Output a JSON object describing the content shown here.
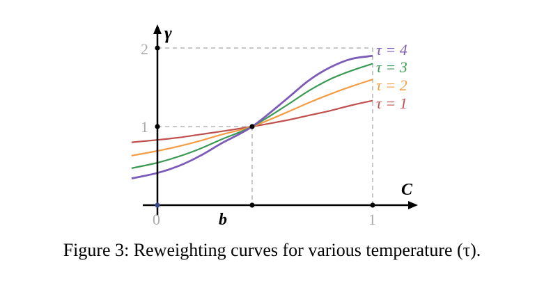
{
  "caption": "Figure 3: Reweighting curves for various temperature (τ).",
  "axes": {
    "x_label": "C",
    "y_label": "γ",
    "x_ticks": [
      "0",
      "b",
      "1"
    ],
    "y_ticks": [
      "1",
      "2"
    ]
  },
  "chart_data": {
    "type": "line",
    "xlabel": "C",
    "ylabel": "γ",
    "xlim": [
      -0.1,
      1.2
    ],
    "ylim": [
      0,
      2.2
    ],
    "x_ticks": [
      0,
      0.44,
      1
    ],
    "x_tick_labels": [
      "0",
      "b",
      "1"
    ],
    "y_ticks": [
      1,
      2
    ],
    "y_tick_labels": [
      "1",
      "2"
    ],
    "reference_point": {
      "x": 0.44,
      "y": 1
    },
    "grid": false,
    "legend": "right",
    "series": [
      {
        "name": "τ = 1",
        "color": "#c0504d",
        "x": [
          -0.12,
          0,
          0.1,
          0.2,
          0.3,
          0.44,
          0.6,
          0.7,
          0.8,
          0.9,
          1.0
        ],
        "y": [
          0.8,
          0.83,
          0.86,
          0.9,
          0.94,
          1.0,
          1.08,
          1.14,
          1.2,
          1.27,
          1.33
        ]
      },
      {
        "name": "τ = 2",
        "color": "#f39c43",
        "x": [
          -0.12,
          0,
          0.1,
          0.2,
          0.3,
          0.44,
          0.6,
          0.7,
          0.8,
          0.9,
          1.0
        ],
        "y": [
          0.63,
          0.69,
          0.75,
          0.82,
          0.9,
          1.0,
          1.18,
          1.3,
          1.41,
          1.51,
          1.6
        ]
      },
      {
        "name": "τ = 3",
        "color": "#3a9a54",
        "x": [
          -0.12,
          0,
          0.1,
          0.2,
          0.3,
          0.44,
          0.6,
          0.7,
          0.8,
          0.9,
          1.0
        ],
        "y": [
          0.47,
          0.54,
          0.62,
          0.72,
          0.84,
          1.0,
          1.27,
          1.45,
          1.6,
          1.71,
          1.8
        ]
      },
      {
        "name": "τ = 4",
        "color": "#7c5bb8",
        "x": [
          -0.12,
          0,
          0.1,
          0.2,
          0.3,
          0.44,
          0.6,
          0.7,
          0.8,
          0.9,
          1.0
        ],
        "y": [
          0.34,
          0.41,
          0.5,
          0.63,
          0.79,
          1.0,
          1.35,
          1.58,
          1.75,
          1.86,
          1.9
        ]
      }
    ]
  },
  "labels": {
    "tau4": "τ = 4",
    "tau3": "τ = 3",
    "tau2": "τ = 2",
    "tau1": "τ = 1"
  }
}
